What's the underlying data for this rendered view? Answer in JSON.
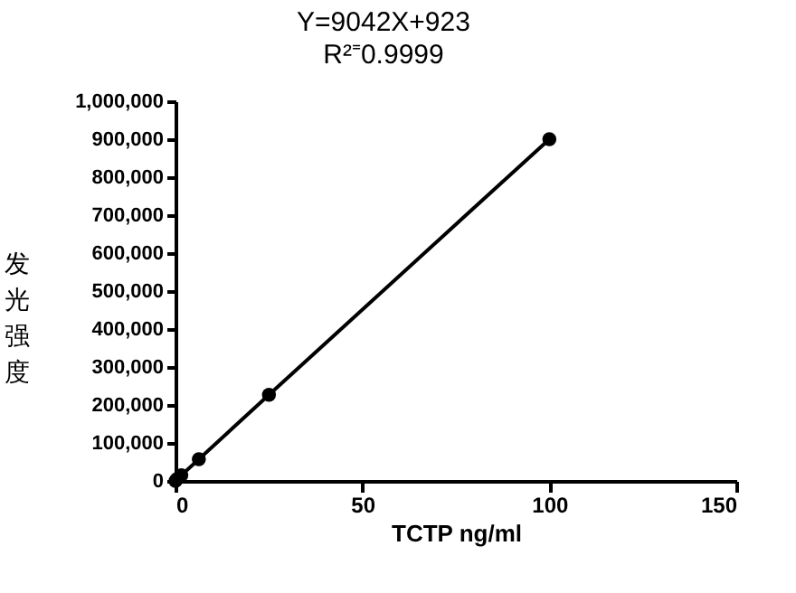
{
  "chart_data": {
    "type": "line",
    "title": "Y=9042X+923",
    "subtitle": "R²⁼0.9999",
    "xlabel": "TCTP ng/ml",
    "ylabel": "发光强度",
    "x": [
      0,
      0.39,
      1.56,
      6.25,
      25,
      100
    ],
    "series": [
      {
        "color": "#000000",
        "values": [
          0,
          5000,
          15000,
          57000,
          227000,
          900000
        ]
      }
    ],
    "xlim": [
      0,
      150
    ],
    "xticks": [
      0,
      50,
      100,
      150
    ],
    "ylim": [
      0,
      1000000
    ],
    "yticks": [
      0,
      {
        "value": 100000,
        "label": "100,000"
      },
      {
        "value": 200000,
        "label": "200,000"
      },
      {
        "value": 300000,
        "label": "300,000"
      },
      {
        "value": 400000,
        "label": "400,000"
      },
      {
        "value": 500000,
        "label": "500,000"
      },
      {
        "value": 600000,
        "label": "600,000"
      },
      {
        "value": 700000,
        "label": "700,000"
      },
      {
        "value": 800000,
        "label": "800,000"
      },
      {
        "value": 900000,
        "label": "900,000"
      },
      {
        "value": 1000000,
        "label": "1,000,000"
      }
    ],
    "grid": false,
    "marker": "circle",
    "line_style": "solid"
  }
}
